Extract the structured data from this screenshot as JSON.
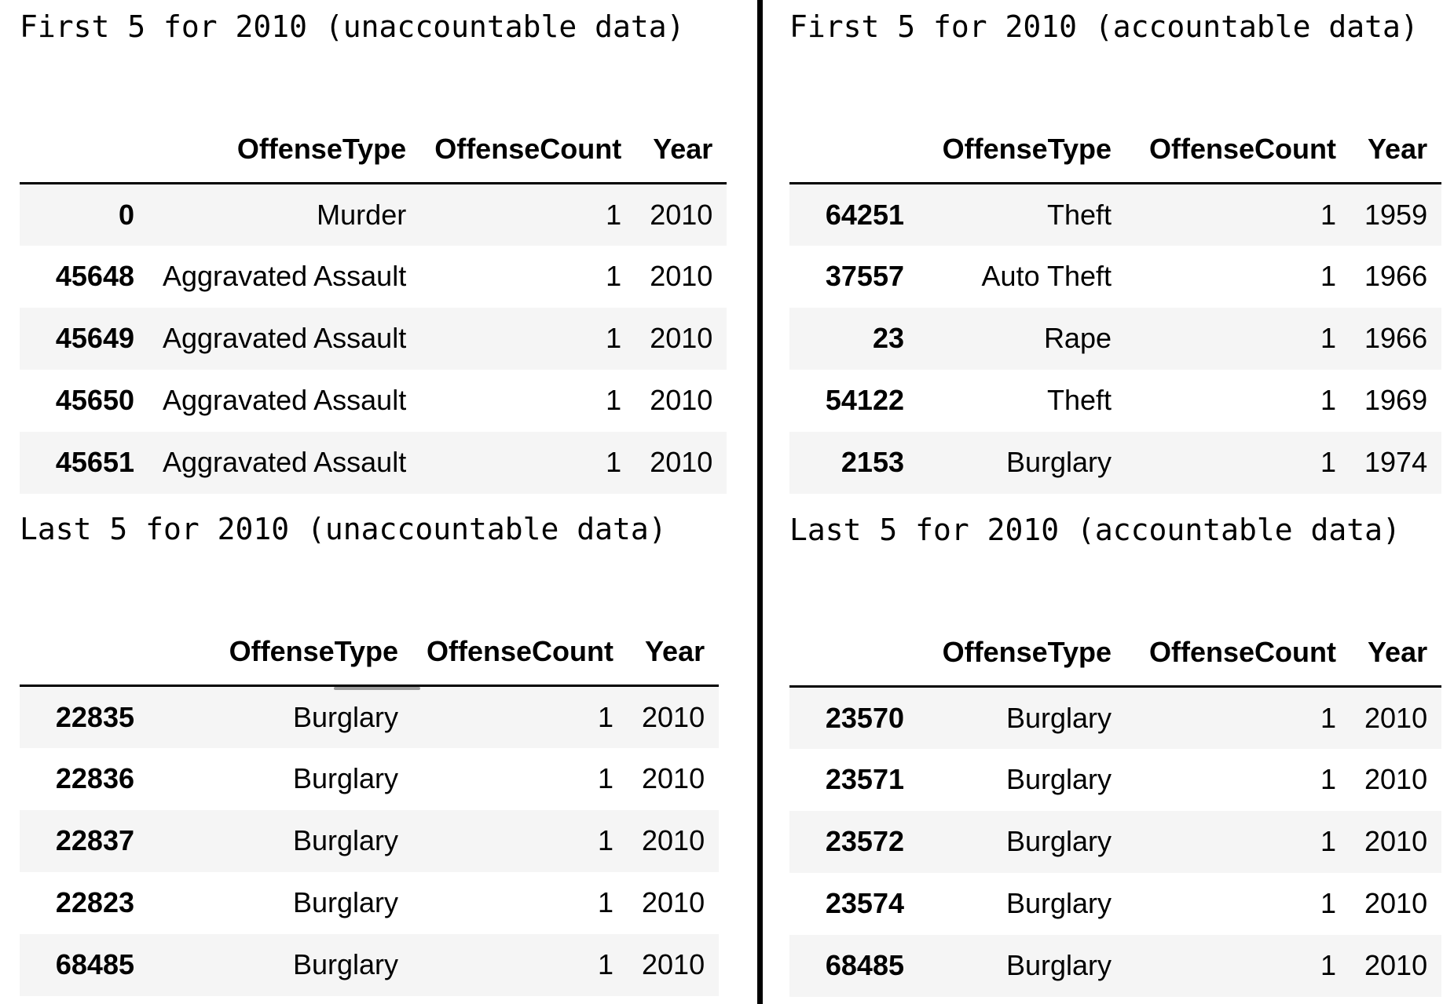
{
  "columns": [
    "OffenseType",
    "OffenseCount",
    "Year"
  ],
  "panels": [
    {
      "caption": "First 5 for 2010 (unaccountable data)",
      "rows": [
        {
          "index": "0",
          "OffenseType": "Murder",
          "OffenseCount": "1",
          "Year": "2010"
        },
        {
          "index": "45648",
          "OffenseType": "Aggravated Assault",
          "OffenseCount": "1",
          "Year": "2010"
        },
        {
          "index": "45649",
          "OffenseType": "Aggravated Assault",
          "OffenseCount": "1",
          "Year": "2010"
        },
        {
          "index": "45650",
          "OffenseType": "Aggravated Assault",
          "OffenseCount": "1",
          "Year": "2010"
        },
        {
          "index": "45651",
          "OffenseType": "Aggravated Assault",
          "OffenseCount": "1",
          "Year": "2010"
        }
      ]
    },
    {
      "caption": "Last 5 for 2010 (unaccountable data)",
      "rows": [
        {
          "index": "22835",
          "OffenseType": "Burglary",
          "OffenseCount": "1",
          "Year": "2010"
        },
        {
          "index": "22836",
          "OffenseType": "Burglary",
          "OffenseCount": "1",
          "Year": "2010"
        },
        {
          "index": "22837",
          "OffenseType": "Burglary",
          "OffenseCount": "1",
          "Year": "2010"
        },
        {
          "index": "22823",
          "OffenseType": "Burglary",
          "OffenseCount": "1",
          "Year": "2010"
        },
        {
          "index": "68485",
          "OffenseType": "Burglary",
          "OffenseCount": "1",
          "Year": "2010"
        }
      ]
    },
    {
      "caption": "First 5 for 2010 (accountable data)",
      "rows": [
        {
          "index": "64251",
          "OffenseType": "Theft",
          "OffenseCount": "1",
          "Year": "1959"
        },
        {
          "index": "37557",
          "OffenseType": "Auto Theft",
          "OffenseCount": "1",
          "Year": "1966"
        },
        {
          "index": "23",
          "OffenseType": "Rape",
          "OffenseCount": "1",
          "Year": "1966"
        },
        {
          "index": "54122",
          "OffenseType": "Theft",
          "OffenseCount": "1",
          "Year": "1969"
        },
        {
          "index": "2153",
          "OffenseType": "Burglary",
          "OffenseCount": "1",
          "Year": "1974"
        }
      ]
    },
    {
      "caption": "Last 5 for 2010 (accountable data)",
      "rows": [
        {
          "index": "23570",
          "OffenseType": "Burglary",
          "OffenseCount": "1",
          "Year": "2010"
        },
        {
          "index": "23571",
          "OffenseType": "Burglary",
          "OffenseCount": "1",
          "Year": "2010"
        },
        {
          "index": "23572",
          "OffenseType": "Burglary",
          "OffenseCount": "1",
          "Year": "2010"
        },
        {
          "index": "23574",
          "OffenseType": "Burglary",
          "OffenseCount": "1",
          "Year": "2010"
        },
        {
          "index": "68485",
          "OffenseType": "Burglary",
          "OffenseCount": "1",
          "Year": "2010"
        }
      ]
    }
  ]
}
